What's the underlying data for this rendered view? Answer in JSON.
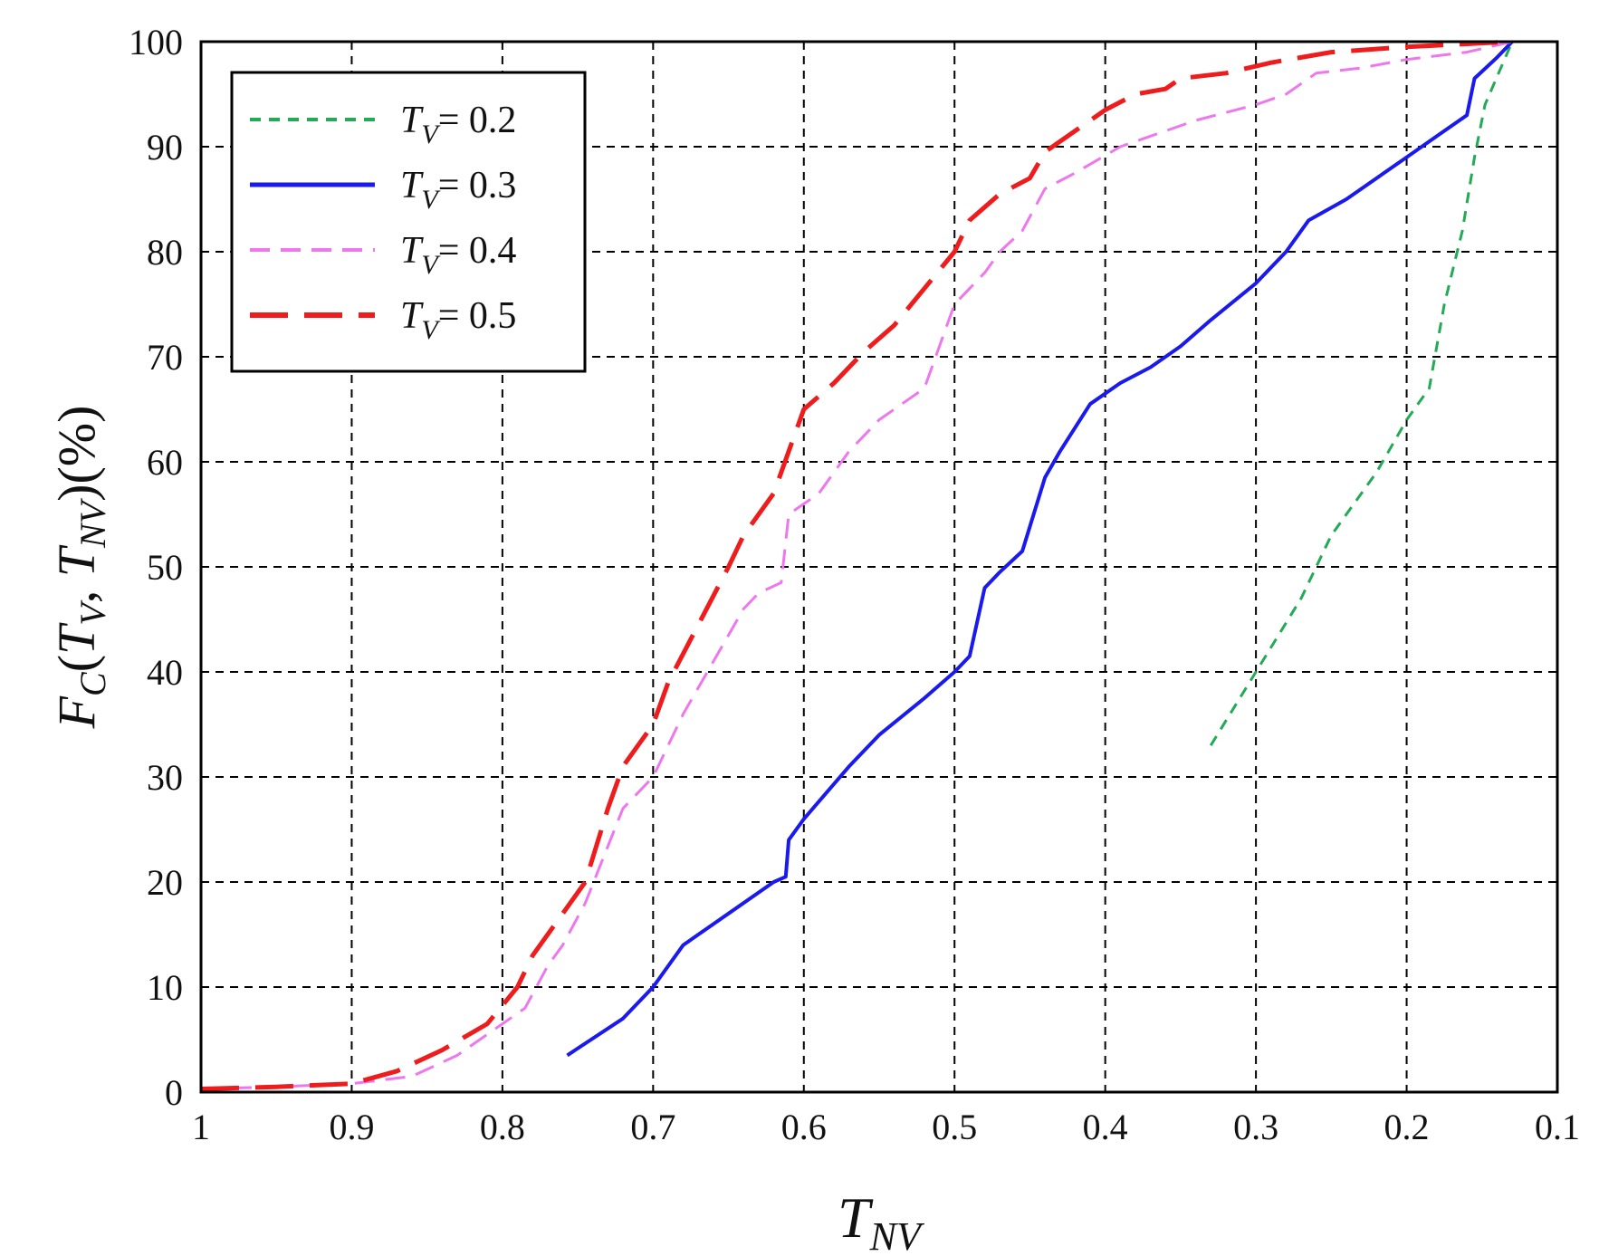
{
  "chart_data": {
    "type": "line",
    "xlabel": {
      "main": "T",
      "sub": "NV"
    },
    "ylabel": {
      "parts": [
        {
          "t": "F",
          "i": true
        },
        {
          "t": "C",
          "sub": true
        },
        {
          "t": "("
        },
        {
          "t": "T",
          "i": true
        },
        {
          "t": "V",
          "sub": true
        },
        {
          "t": ",  "
        },
        {
          "t": "T",
          "i": true
        },
        {
          "t": "NV",
          "sub": true
        },
        {
          "t": ")(%)"
        }
      ]
    },
    "xlim": [
      1,
      0.1
    ],
    "ylim": [
      0,
      100
    ],
    "x_reversed": true,
    "grid": true,
    "legend_position": "top-left",
    "x_ticks": [
      "1",
      "0.9",
      "0.8",
      "0.7",
      "0.6",
      "0.5",
      "0.4",
      "0.3",
      "0.2",
      "0.1"
    ],
    "y_ticks": [
      "0",
      "10",
      "20",
      "30",
      "40",
      "50",
      "60",
      "70",
      "80",
      "90",
      "100"
    ],
    "series": [
      {
        "name": "T_V= 0.2",
        "legend": {
          "var": "T",
          "sub": "V",
          "rest": "= 0.2"
        },
        "color": "#22aa55",
        "style": "short-dash",
        "points": [
          [
            0.33,
            33
          ],
          [
            0.3,
            40
          ],
          [
            0.27,
            47
          ],
          [
            0.25,
            53
          ],
          [
            0.22,
            59
          ],
          [
            0.2,
            64
          ],
          [
            0.185,
            67
          ],
          [
            0.175,
            75
          ],
          [
            0.163,
            82
          ],
          [
            0.155,
            89
          ],
          [
            0.148,
            94
          ],
          [
            0.13,
            100
          ]
        ]
      },
      {
        "name": "T_V= 0.3",
        "legend": {
          "var": "T",
          "sub": "V",
          "rest": "= 0.3"
        },
        "color": "#1a1aee",
        "style": "solid",
        "points": [
          [
            0.757,
            3.5
          ],
          [
            0.72,
            7
          ],
          [
            0.7,
            10
          ],
          [
            0.68,
            14
          ],
          [
            0.65,
            17
          ],
          [
            0.62,
            20
          ],
          [
            0.612,
            20.5
          ],
          [
            0.61,
            24
          ],
          [
            0.6,
            26
          ],
          [
            0.57,
            31
          ],
          [
            0.55,
            34
          ],
          [
            0.52,
            37.5
          ],
          [
            0.5,
            40
          ],
          [
            0.49,
            41.5
          ],
          [
            0.48,
            48
          ],
          [
            0.47,
            49.5
          ],
          [
            0.455,
            51.5
          ],
          [
            0.44,
            58.5
          ],
          [
            0.43,
            61
          ],
          [
            0.41,
            65.5
          ],
          [
            0.39,
            67.5
          ],
          [
            0.37,
            69
          ],
          [
            0.35,
            71
          ],
          [
            0.33,
            73.5
          ],
          [
            0.3,
            77
          ],
          [
            0.28,
            80
          ],
          [
            0.265,
            83
          ],
          [
            0.24,
            85
          ],
          [
            0.2,
            89
          ],
          [
            0.18,
            91
          ],
          [
            0.16,
            93
          ],
          [
            0.155,
            96.5
          ],
          [
            0.14,
            98.5
          ],
          [
            0.13,
            100
          ]
        ]
      },
      {
        "name": "T_V= 0.4",
        "legend": {
          "var": "T",
          "sub": "V",
          "rest": "= 0.4"
        },
        "color": "#ee77ee",
        "style": "dash",
        "points": [
          [
            1.0,
            0.3
          ],
          [
            0.95,
            0.5
          ],
          [
            0.9,
            0.8
          ],
          [
            0.86,
            1.5
          ],
          [
            0.83,
            3.5
          ],
          [
            0.8,
            6.5
          ],
          [
            0.785,
            8
          ],
          [
            0.77,
            12
          ],
          [
            0.76,
            14
          ],
          [
            0.745,
            18
          ],
          [
            0.72,
            27
          ],
          [
            0.7,
            30
          ],
          [
            0.68,
            36
          ],
          [
            0.66,
            41
          ],
          [
            0.64,
            46
          ],
          [
            0.63,
            47.5
          ],
          [
            0.615,
            48.5
          ],
          [
            0.61,
            55
          ],
          [
            0.59,
            57
          ],
          [
            0.57,
            61
          ],
          [
            0.55,
            64
          ],
          [
            0.52,
            67
          ],
          [
            0.5,
            75
          ],
          [
            0.48,
            78
          ],
          [
            0.47,
            80
          ],
          [
            0.455,
            82
          ],
          [
            0.44,
            86
          ],
          [
            0.42,
            87.5
          ],
          [
            0.39,
            90
          ],
          [
            0.36,
            91.5
          ],
          [
            0.34,
            92.5
          ],
          [
            0.3,
            94
          ],
          [
            0.28,
            95
          ],
          [
            0.26,
            97
          ],
          [
            0.23,
            97.5
          ],
          [
            0.2,
            98.3
          ],
          [
            0.16,
            99
          ],
          [
            0.13,
            100
          ]
        ]
      },
      {
        "name": "T_V= 0.5",
        "legend": {
          "var": "T",
          "sub": "V",
          "rest": "= 0.5"
        },
        "color": "#ee1c1c",
        "style": "long-dash",
        "points": [
          [
            1.0,
            0.3
          ],
          [
            0.95,
            0.5
          ],
          [
            0.9,
            0.8
          ],
          [
            0.87,
            2
          ],
          [
            0.84,
            4
          ],
          [
            0.81,
            6.5
          ],
          [
            0.79,
            10
          ],
          [
            0.78,
            13
          ],
          [
            0.76,
            17
          ],
          [
            0.745,
            20
          ],
          [
            0.73,
            27
          ],
          [
            0.72,
            31
          ],
          [
            0.7,
            35
          ],
          [
            0.69,
            39
          ],
          [
            0.67,
            44.5
          ],
          [
            0.65,
            50
          ],
          [
            0.64,
            53
          ],
          [
            0.62,
            57
          ],
          [
            0.61,
            61
          ],
          [
            0.6,
            65
          ],
          [
            0.58,
            67.5
          ],
          [
            0.56,
            70.5
          ],
          [
            0.54,
            73
          ],
          [
            0.52,
            76.5
          ],
          [
            0.5,
            80
          ],
          [
            0.49,
            83
          ],
          [
            0.47,
            85.5
          ],
          [
            0.45,
            87
          ],
          [
            0.44,
            89.5
          ],
          [
            0.42,
            91.5
          ],
          [
            0.4,
            93.5
          ],
          [
            0.38,
            95
          ],
          [
            0.36,
            95.5
          ],
          [
            0.35,
            96.5
          ],
          [
            0.32,
            97
          ],
          [
            0.29,
            98
          ],
          [
            0.25,
            99
          ],
          [
            0.2,
            99.5
          ],
          [
            0.13,
            100
          ]
        ]
      }
    ]
  }
}
